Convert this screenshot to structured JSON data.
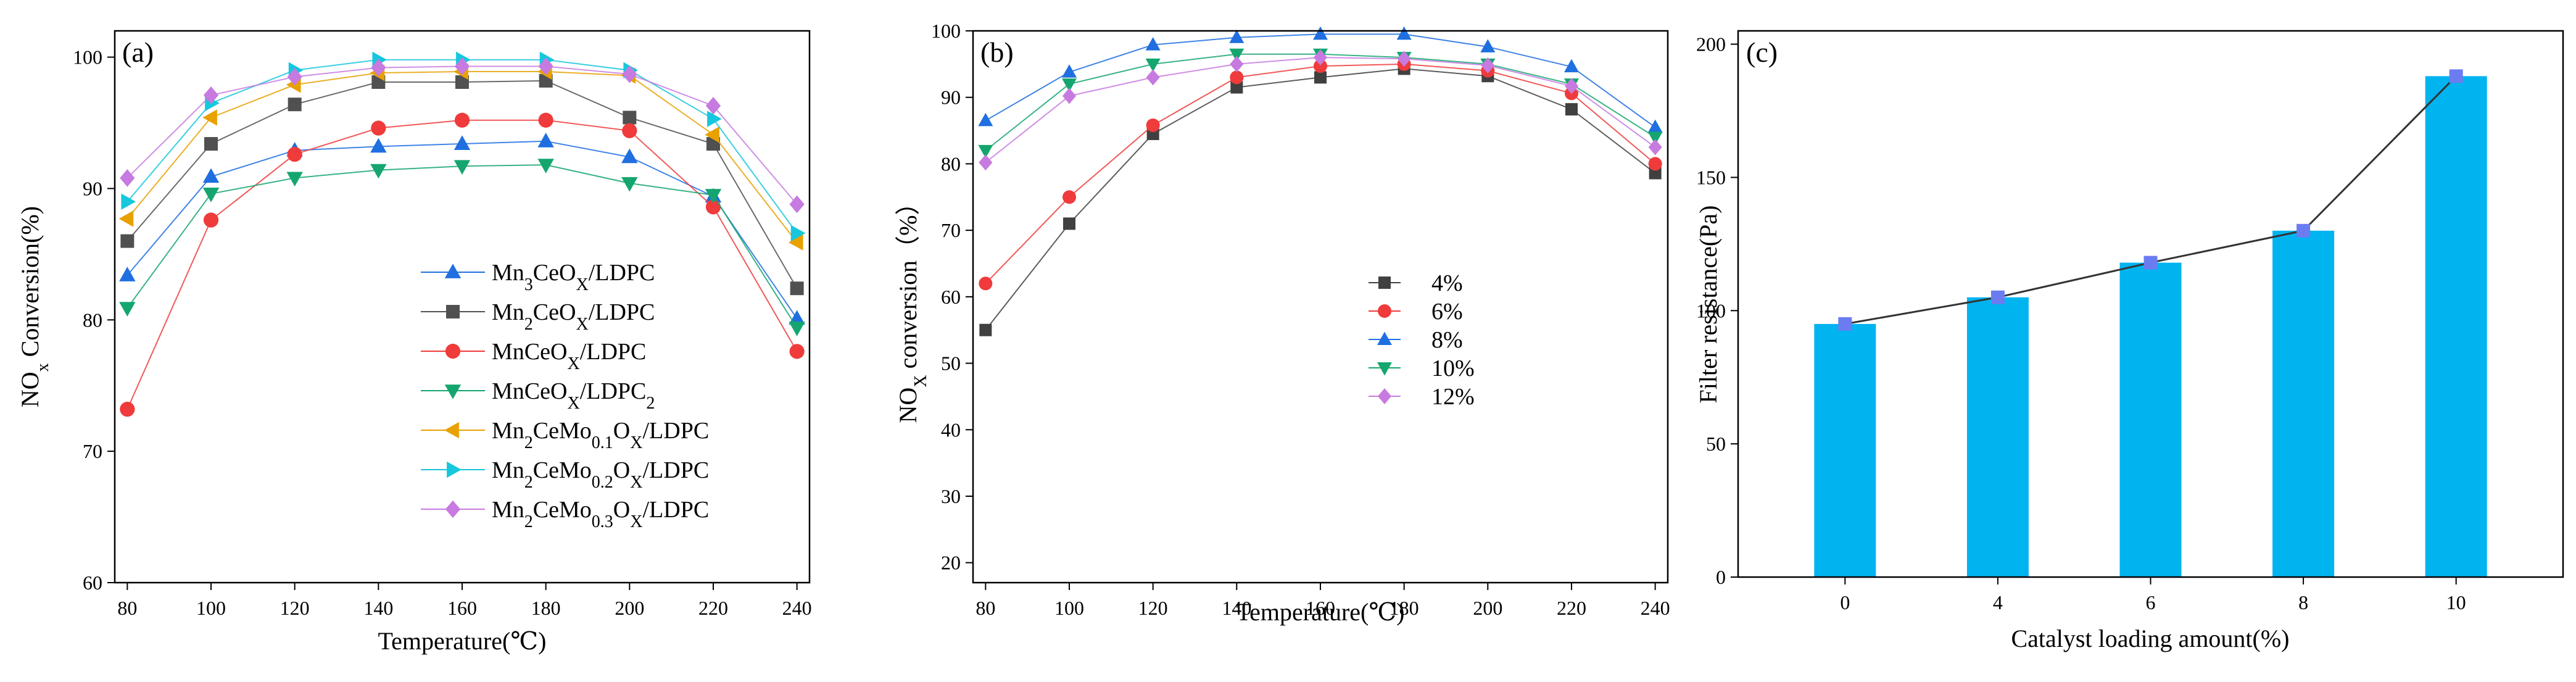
{
  "chart_data": [
    {
      "id": "a",
      "type": "line",
      "panel_label": "(a)",
      "xlabel": "Temperature(℃)",
      "ylabel_prefix": "NO",
      "ylabel_sub": "x",
      "ylabel_suffix": " Conversion(%)",
      "xlim": [
        77,
        243
      ],
      "ylim": [
        60,
        102
      ],
      "xticks": [
        80,
        100,
        120,
        140,
        160,
        180,
        200,
        220,
        240
      ],
      "yticks": [
        60,
        70,
        80,
        90,
        100
      ],
      "grid": false,
      "legend_position": "lower-center",
      "x": [
        80,
        100,
        120,
        140,
        160,
        180,
        200,
        220,
        240
      ],
      "series": [
        {
          "name": "Mn3CeOX/LDPC",
          "label_parts": [
            [
              "Mn",
              ""
            ],
            [
              "3",
              "sub"
            ],
            [
              "CeO",
              ""
            ],
            [
              "X",
              "sub"
            ],
            [
              "/LDPC",
              ""
            ]
          ],
          "color": "#1f6fe0",
          "marker": "triangle-up",
          "values": [
            83.4,
            90.9,
            92.9,
            93.2,
            93.4,
            93.6,
            92.4,
            89.4,
            80.1
          ]
        },
        {
          "name": "Mn2CeOX/LDPC",
          "label_parts": [
            [
              "Mn",
              ""
            ],
            [
              "2",
              "sub"
            ],
            [
              "CeO",
              ""
            ],
            [
              "X",
              "sub"
            ],
            [
              "/LDPC",
              ""
            ]
          ],
          "color": "#505050",
          "marker": "square",
          "values": [
            86.0,
            93.4,
            96.4,
            98.1,
            98.1,
            98.2,
            95.4,
            93.4,
            82.4
          ]
        },
        {
          "name": "MnCeOX/LDPC",
          "label_parts": [
            [
              "MnCeO",
              ""
            ],
            [
              "X",
              "sub"
            ],
            [
              "/LDPC",
              ""
            ]
          ],
          "color": "#ef3b3b",
          "marker": "circle",
          "values": [
            73.2,
            87.6,
            92.6,
            94.6,
            95.2,
            95.2,
            94.4,
            88.6,
            77.6
          ]
        },
        {
          "name": "MnCeOX/LDPC2",
          "label_parts": [
            [
              "MnCeO",
              ""
            ],
            [
              "X",
              "sub"
            ],
            [
              "/LDPC",
              ""
            ],
            [
              "2",
              "sub"
            ]
          ],
          "color": "#15a66f",
          "marker": "triangle-down",
          "values": [
            80.9,
            89.6,
            90.8,
            91.4,
            91.7,
            91.8,
            90.4,
            89.5,
            79.4
          ]
        },
        {
          "name": "Mn2CeMo0.1OX/LDPC",
          "label_parts": [
            [
              "Mn",
              ""
            ],
            [
              "2",
              "sub"
            ],
            [
              "CeMo",
              ""
            ],
            [
              "0.1",
              "sub"
            ],
            [
              "O",
              ""
            ],
            [
              "X",
              "sub"
            ],
            [
              "/LDPC",
              ""
            ]
          ],
          "color": "#e8a100",
          "marker": "triangle-left",
          "values": [
            87.7,
            95.4,
            97.9,
            98.8,
            98.9,
            98.9,
            98.6,
            94.1,
            85.9
          ]
        },
        {
          "name": "Mn2CeMo0.2OX/LDPC",
          "label_parts": [
            [
              "Mn",
              ""
            ],
            [
              "2",
              "sub"
            ],
            [
              "CeMo",
              ""
            ],
            [
              "0.2",
              "sub"
            ],
            [
              "O",
              ""
            ],
            [
              "X",
              "sub"
            ],
            [
              "/LDPC",
              ""
            ]
          ],
          "color": "#16c7dd",
          "marker": "triangle-right",
          "values": [
            89.0,
            96.5,
            99.0,
            99.8,
            99.8,
            99.8,
            99.0,
            95.3,
            86.6
          ]
        },
        {
          "name": "Mn2CeMo0.3OX/LDPC",
          "label_parts": [
            [
              "Mn",
              ""
            ],
            [
              "2",
              "sub"
            ],
            [
              "CeMo",
              ""
            ],
            [
              "0.3",
              "sub"
            ],
            [
              "O",
              ""
            ],
            [
              "X",
              "sub"
            ],
            [
              "/LDPC",
              ""
            ]
          ],
          "color": "#c77ae0",
          "marker": "diamond",
          "values": [
            90.8,
            97.1,
            98.5,
            99.2,
            99.3,
            99.3,
            98.7,
            96.3,
            88.8
          ]
        }
      ]
    },
    {
      "id": "b",
      "type": "line",
      "panel_label": "(b)",
      "xlabel": "Temperature(℃)",
      "ylabel_prefix": "NO",
      "ylabel_sub": "X",
      "ylabel_suffix": " conversion（%）",
      "xlim": [
        77,
        243
      ],
      "ylim": [
        17,
        100
      ],
      "xticks": [
        80,
        100,
        120,
        140,
        160,
        180,
        200,
        220,
        240
      ],
      "yticks": [
        20,
        30,
        40,
        50,
        60,
        70,
        80,
        90,
        100
      ],
      "grid": false,
      "legend_position": "center-right",
      "x": [
        80,
        100,
        120,
        140,
        160,
        180,
        200,
        220,
        240
      ],
      "series": [
        {
          "name": "4%",
          "label_parts": [
            [
              "4%",
              ""
            ]
          ],
          "color": "#404040",
          "marker": "square",
          "values": [
            55,
            71,
            84.5,
            91.5,
            93,
            94.3,
            93.2,
            88.2,
            78.6
          ]
        },
        {
          "name": "6%",
          "label_parts": [
            [
              "6%",
              ""
            ]
          ],
          "color": "#ef3b3b",
          "marker": "circle",
          "values": [
            62,
            75,
            85.8,
            93,
            94.7,
            95,
            94,
            90.6,
            80
          ]
        },
        {
          "name": "8%",
          "label_parts": [
            [
              "8%",
              ""
            ]
          ],
          "color": "#1f6fe0",
          "marker": "triangle-up",
          "values": [
            86.5,
            93.8,
            97.9,
            99,
            99.5,
            99.5,
            97.6,
            94.6,
            85.5
          ]
        },
        {
          "name": "10%",
          "label_parts": [
            [
              "10%",
              ""
            ]
          ],
          "color": "#15a66f",
          "marker": "triangle-down",
          "values": [
            82,
            92,
            95,
            96.5,
            96.5,
            96,
            95,
            92,
            84
          ]
        },
        {
          "name": "12%",
          "label_parts": [
            [
              "12%",
              ""
            ]
          ],
          "color": "#c77ae0",
          "marker": "diamond",
          "values": [
            80.2,
            90.2,
            93,
            95,
            96,
            95.8,
            94.8,
            91.7,
            82.5
          ]
        }
      ]
    },
    {
      "id": "c",
      "type": "bar",
      "panel_label": "(c)",
      "xlabel": "Catalyst loading amount(%)",
      "ylabel": "Filter resistance(Pa)",
      "categories": [
        "0",
        "4",
        "6",
        "8",
        "10"
      ],
      "values": [
        95,
        105,
        118,
        130,
        188
      ],
      "ylim": [
        0,
        205
      ],
      "yticks": [
        0,
        50,
        100,
        150,
        200
      ],
      "grid": false,
      "bar_color": "#00b4f0",
      "line_color": "#333333",
      "marker_color": "#6b7cf0",
      "marker": "square"
    }
  ]
}
